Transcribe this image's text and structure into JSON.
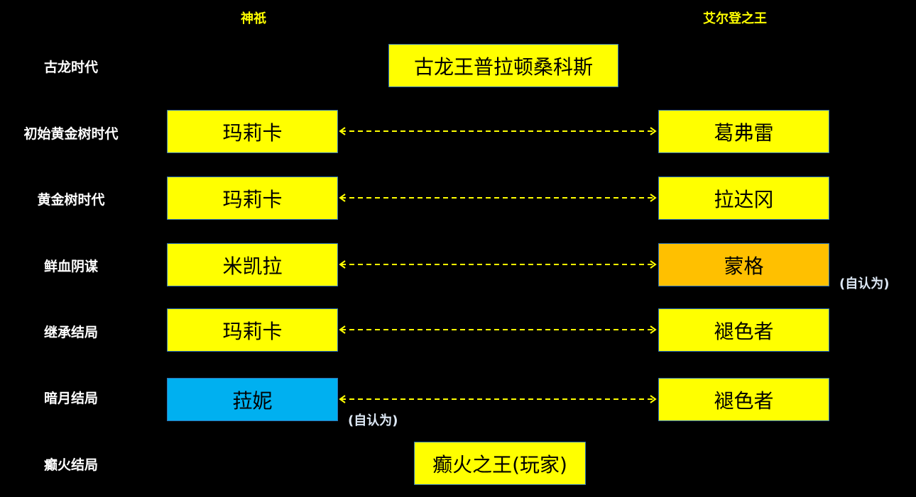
{
  "headers": {
    "left": "神祇",
    "right": "艾尔登之王"
  },
  "colors": {
    "box": "#ffff00",
    "mohg": "#ffc000",
    "ranni": "#00b0f0",
    "arrow": "#ffff00",
    "header": "#ffff00"
  },
  "rows": [
    {
      "label": "古龙时代",
      "center": "古龙王普拉顿桑科斯"
    },
    {
      "label": "初始黄金树时代",
      "left": "玛莉卡",
      "right": "葛弗雷"
    },
    {
      "label": "黄金树时代",
      "left": "玛莉卡",
      "right": "拉达冈"
    },
    {
      "label": "鲜血阴谋",
      "left": "米凯拉",
      "right": "蒙格",
      "right_note": "(自认为)"
    },
    {
      "label": "继承结局",
      "left": "玛莉卡",
      "right": "褪色者"
    },
    {
      "label": "暗月结局",
      "left": "菈妮",
      "left_note": "(自认为)",
      "right": "褪色者"
    },
    {
      "label": "癫火结局",
      "center": "癫火之王(玩家)"
    }
  ]
}
